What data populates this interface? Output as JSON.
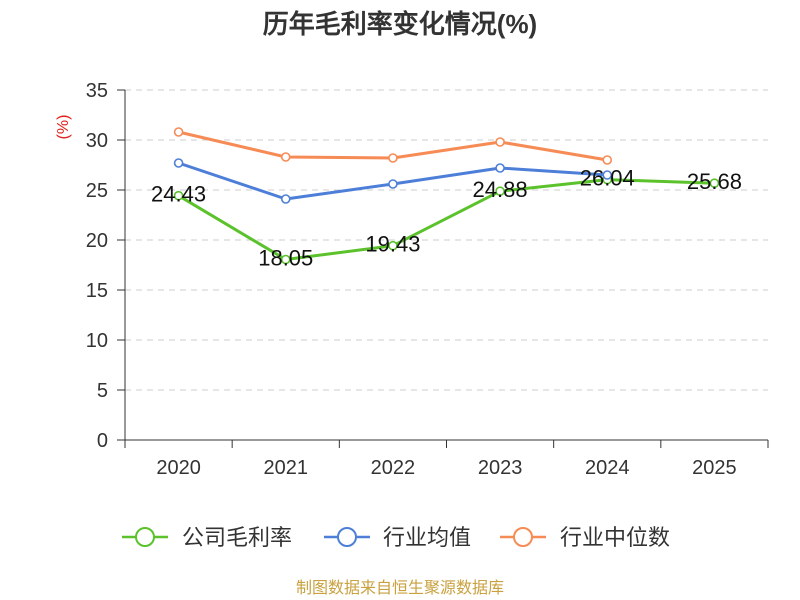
{
  "chart_data": {
    "type": "line",
    "title": "历年毛利率变化情况(%)",
    "xlabel": "",
    "ylabel": "(%)",
    "categories": [
      "2020",
      "2021",
      "2022",
      "2023",
      "2024",
      "2025"
    ],
    "ylim": [
      0,
      35
    ],
    "yticks": [
      0,
      5,
      10,
      15,
      20,
      25,
      30,
      35
    ],
    "grid": true,
    "legend_position": "bottom",
    "series": [
      {
        "name": "公司毛利率",
        "color": "#5bc22b",
        "values": [
          24.43,
          18.05,
          19.43,
          24.88,
          26.04,
          25.68
        ],
        "labels": [
          "24.43",
          "18.05",
          "19.43",
          "24.88",
          "26.04",
          "25.68"
        ]
      },
      {
        "name": "行业均值",
        "color": "#4d7fd8",
        "values": [
          27.7,
          24.1,
          25.6,
          27.2,
          26.5,
          null
        ]
      },
      {
        "name": "行业中位数",
        "color": "#f68b55",
        "values": [
          30.8,
          28.3,
          28.2,
          29.8,
          28.0,
          null
        ]
      }
    ]
  },
  "footer": "制图数据来自恒生聚源数据库",
  "colors": {
    "ylabel": "#e0201b",
    "footer": "#c9a13e",
    "grid": "#cccccc",
    "axis": "#333333"
  }
}
